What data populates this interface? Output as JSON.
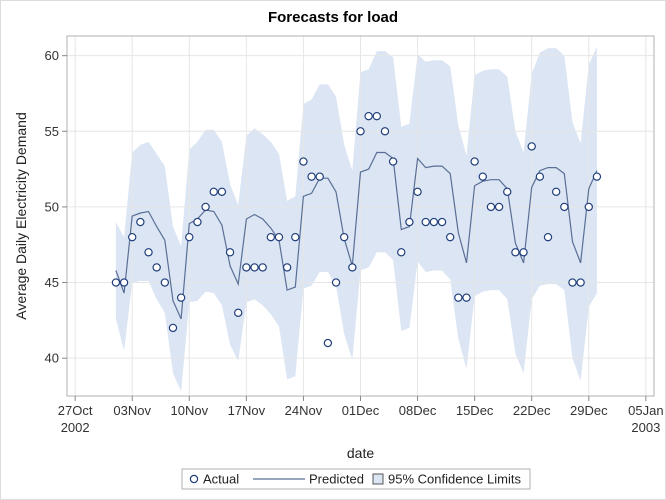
{
  "chart_data": {
    "type": "line",
    "title": "Forecasts for load",
    "xlabel": "date",
    "ylabel": "Average Daily Electricity Demand",
    "ylim": [
      37.5,
      61.3
    ],
    "yticks": [
      "40",
      "45",
      "50",
      "55",
      "60"
    ],
    "xticks": [
      {
        "date": "2002-10-27",
        "label": "27Oct",
        "sublabel": "2002"
      },
      {
        "date": "2002-11-03",
        "label": "03Nov",
        "sublabel": ""
      },
      {
        "date": "2002-11-10",
        "label": "10Nov",
        "sublabel": ""
      },
      {
        "date": "2002-11-17",
        "label": "17Nov",
        "sublabel": ""
      },
      {
        "date": "2002-11-24",
        "label": "24Nov",
        "sublabel": ""
      },
      {
        "date": "2002-12-01",
        "label": "01Dec",
        "sublabel": ""
      },
      {
        "date": "2002-12-08",
        "label": "08Dec",
        "sublabel": ""
      },
      {
        "date": "2002-12-15",
        "label": "15Dec",
        "sublabel": ""
      },
      {
        "date": "2002-12-22",
        "label": "22Dec",
        "sublabel": ""
      },
      {
        "date": "2002-12-29",
        "label": "29Dec",
        "sublabel": ""
      },
      {
        "date": "2003-01-05",
        "label": "05Jan",
        "sublabel": "2003"
      }
    ],
    "xlim": [
      "2002-10-26",
      "2003-01-06"
    ],
    "grid": true,
    "legend_position": "bottom",
    "series": [
      {
        "name": "Actual",
        "kind": "scatter",
        "color": "#1f3d7a",
        "points": [
          [
            "2002-11-01",
            45
          ],
          [
            "2002-11-02",
            45
          ],
          [
            "2002-11-03",
            48
          ],
          [
            "2002-11-04",
            49
          ],
          [
            "2002-11-05",
            47
          ],
          [
            "2002-11-06",
            46
          ],
          [
            "2002-11-07",
            45
          ],
          [
            "2002-11-08",
            42
          ],
          [
            "2002-11-09",
            44
          ],
          [
            "2002-11-10",
            48
          ],
          [
            "2002-11-11",
            49
          ],
          [
            "2002-11-12",
            50
          ],
          [
            "2002-11-13",
            51
          ],
          [
            "2002-11-14",
            51
          ],
          [
            "2002-11-15",
            47
          ],
          [
            "2002-11-16",
            43
          ],
          [
            "2002-11-17",
            46
          ],
          [
            "2002-11-18",
            46
          ],
          [
            "2002-11-19",
            46
          ],
          [
            "2002-11-20",
            48
          ],
          [
            "2002-11-21",
            48
          ],
          [
            "2002-11-22",
            46
          ],
          [
            "2002-11-23",
            48
          ],
          [
            "2002-11-24",
            53
          ],
          [
            "2002-11-25",
            52
          ],
          [
            "2002-11-26",
            52
          ],
          [
            "2002-11-27",
            41
          ],
          [
            "2002-11-28",
            45
          ],
          [
            "2002-11-29",
            48
          ],
          [
            "2002-11-30",
            46
          ],
          [
            "2002-12-01",
            55
          ],
          [
            "2002-12-02",
            56
          ],
          [
            "2002-12-03",
            56
          ],
          [
            "2002-12-04",
            55
          ],
          [
            "2002-12-05",
            53
          ],
          [
            "2002-12-06",
            47
          ],
          [
            "2002-12-07",
            49
          ],
          [
            "2002-12-08",
            51
          ],
          [
            "2002-12-09",
            49
          ],
          [
            "2002-12-10",
            49
          ],
          [
            "2002-12-11",
            49
          ],
          [
            "2002-12-12",
            48
          ],
          [
            "2002-12-13",
            44
          ],
          [
            "2002-12-14",
            44
          ],
          [
            "2002-12-15",
            53
          ],
          [
            "2002-12-16",
            52
          ],
          [
            "2002-12-17",
            50
          ],
          [
            "2002-12-18",
            50
          ],
          [
            "2002-12-19",
            51
          ],
          [
            "2002-12-20",
            47
          ],
          [
            "2002-12-21",
            47
          ],
          [
            "2002-12-22",
            54
          ],
          [
            "2002-12-23",
            52
          ],
          [
            "2002-12-24",
            48
          ],
          [
            "2002-12-25",
            51
          ],
          [
            "2002-12-26",
            50
          ],
          [
            "2002-12-27",
            45
          ],
          [
            "2002-12-28",
            45
          ],
          [
            "2002-12-29",
            50
          ],
          [
            "2002-12-30",
            52
          ]
        ]
      },
      {
        "name": "Predicted",
        "kind": "line",
        "color": "#5a6f96",
        "points": [
          [
            "2002-11-01",
            45.8
          ],
          [
            "2002-11-02",
            44.3
          ],
          [
            "2002-11-03",
            49.4
          ],
          [
            "2002-11-04",
            49.6
          ],
          [
            "2002-11-05",
            49.7
          ],
          [
            "2002-11-06",
            48.7
          ],
          [
            "2002-11-07",
            47.8
          ],
          [
            "2002-11-08",
            43.8
          ],
          [
            "2002-11-09",
            42.6
          ],
          [
            "2002-11-10",
            48.9
          ],
          [
            "2002-11-11",
            49.2
          ],
          [
            "2002-11-12",
            49.8
          ],
          [
            "2002-11-13",
            49.7
          ],
          [
            "2002-11-14",
            48.8
          ],
          [
            "2002-11-15",
            46.1
          ],
          [
            "2002-11-16",
            44.9
          ],
          [
            "2002-11-17",
            49.2
          ],
          [
            "2002-11-18",
            49.5
          ],
          [
            "2002-11-19",
            49.2
          ],
          [
            "2002-11-20",
            48.6
          ],
          [
            "2002-11-21",
            47.8
          ],
          [
            "2002-11-22",
            44.5
          ],
          [
            "2002-11-23",
            44.7
          ],
          [
            "2002-11-24",
            50.7
          ],
          [
            "2002-11-25",
            50.9
          ],
          [
            "2002-11-26",
            51.9
          ],
          [
            "2002-11-27",
            51.9
          ],
          [
            "2002-11-28",
            51.0
          ],
          [
            "2002-11-29",
            47.9
          ],
          [
            "2002-11-30",
            46.1
          ],
          [
            "2002-12-01",
            52.3
          ],
          [
            "2002-12-02",
            52.5
          ],
          [
            "2002-12-03",
            53.6
          ],
          [
            "2002-12-04",
            53.6
          ],
          [
            "2002-12-05",
            53.2
          ],
          [
            "2002-12-06",
            48.5
          ],
          [
            "2002-12-07",
            48.7
          ],
          [
            "2002-12-08",
            53.2
          ],
          [
            "2002-12-09",
            52.6
          ],
          [
            "2002-12-10",
            52.7
          ],
          [
            "2002-12-11",
            52.7
          ],
          [
            "2002-12-12",
            52.2
          ],
          [
            "2002-12-13",
            48.3
          ],
          [
            "2002-12-14",
            46.3
          ],
          [
            "2002-12-15",
            51.4
          ],
          [
            "2002-12-16",
            51.7
          ],
          [
            "2002-12-17",
            51.8
          ],
          [
            "2002-12-18",
            51.8
          ],
          [
            "2002-12-19",
            51.2
          ],
          [
            "2002-12-20",
            47.6
          ],
          [
            "2002-12-21",
            46.3
          ],
          [
            "2002-12-22",
            51.3
          ],
          [
            "2002-12-23",
            52.4
          ],
          [
            "2002-12-24",
            52.6
          ],
          [
            "2002-12-25",
            52.6
          ],
          [
            "2002-12-26",
            52.2
          ],
          [
            "2002-12-27",
            47.7
          ],
          [
            "2002-12-28",
            46.3
          ],
          [
            "2002-12-29",
            51.2
          ],
          [
            "2002-12-30",
            52.4
          ]
        ]
      },
      {
        "name": "95% Confidence Limits",
        "kind": "band",
        "color": "#dbe5f3",
        "points": [
          [
            "2002-11-01",
            42.6,
            49.0
          ],
          [
            "2002-11-02",
            40.5,
            48.0
          ],
          [
            "2002-11-03",
            45.0,
            53.6
          ],
          [
            "2002-11-04",
            45.1,
            54.1
          ],
          [
            "2002-11-05",
            45.1,
            54.3
          ],
          [
            "2002-11-06",
            43.9,
            53.5
          ],
          [
            "2002-11-07",
            43.0,
            52.7
          ],
          [
            "2002-11-08",
            39.0,
            48.7
          ],
          [
            "2002-11-09",
            37.8,
            47.4
          ],
          [
            "2002-11-10",
            43.7,
            53.8
          ],
          [
            "2002-11-11",
            43.8,
            54.3
          ],
          [
            "2002-11-12",
            44.4,
            55.1
          ],
          [
            "2002-11-13",
            44.3,
            55.1
          ],
          [
            "2002-11-14",
            43.5,
            54.3
          ],
          [
            "2002-11-15",
            40.9,
            51.5
          ],
          [
            "2002-11-16",
            39.8,
            50.1
          ],
          [
            "2002-11-17",
            43.7,
            54.7
          ],
          [
            "2002-11-18",
            43.9,
            55.2
          ],
          [
            "2002-11-19",
            43.5,
            54.8
          ],
          [
            "2002-11-20",
            42.9,
            54.3
          ],
          [
            "2002-11-21",
            42.1,
            53.5
          ],
          [
            "2002-11-22",
            38.6,
            50.4
          ],
          [
            "2002-11-23",
            38.8,
            50.7
          ],
          [
            "2002-11-24",
            44.6,
            56.8
          ],
          [
            "2002-11-25",
            44.8,
            57.1
          ],
          [
            "2002-11-26",
            45.7,
            58.1
          ],
          [
            "2002-11-27",
            45.7,
            58.1
          ],
          [
            "2002-11-28",
            44.8,
            57.3
          ],
          [
            "2002-11-29",
            41.6,
            54.1
          ],
          [
            "2002-11-30",
            39.9,
            52.4
          ],
          [
            "2002-12-01",
            45.8,
            58.9
          ],
          [
            "2002-12-02",
            46.0,
            59.1
          ],
          [
            "2002-12-03",
            47.0,
            60.3
          ],
          [
            "2002-12-04",
            47.0,
            60.3
          ],
          [
            "2002-12-05",
            46.5,
            59.9
          ],
          [
            "2002-12-06",
            41.8,
            55.3
          ],
          [
            "2002-12-07",
            42.0,
            55.5
          ],
          [
            "2002-12-08",
            46.4,
            60.1
          ],
          [
            "2002-12-09",
            45.7,
            59.6
          ],
          [
            "2002-12-10",
            45.8,
            59.7
          ],
          [
            "2002-12-11",
            45.8,
            59.7
          ],
          [
            "2002-12-12",
            45.2,
            59.3
          ],
          [
            "2002-12-13",
            41.3,
            55.4
          ],
          [
            "2002-12-14",
            39.3,
            53.4
          ],
          [
            "2002-12-15",
            44.1,
            58.7
          ],
          [
            "2002-12-16",
            44.4,
            59.0
          ],
          [
            "2002-12-17",
            44.5,
            59.1
          ],
          [
            "2002-12-18",
            44.5,
            59.1
          ],
          [
            "2002-12-19",
            43.9,
            58.6
          ],
          [
            "2002-12-20",
            40.3,
            55.0
          ],
          [
            "2002-12-21",
            39.0,
            53.6
          ],
          [
            "2002-12-22",
            43.9,
            58.8
          ],
          [
            "2002-12-23",
            44.8,
            60.2
          ],
          [
            "2002-12-24",
            44.9,
            60.5
          ],
          [
            "2002-12-25",
            44.9,
            60.5
          ],
          [
            "2002-12-26",
            44.5,
            60.0
          ],
          [
            "2002-12-27",
            40.0,
            55.6
          ],
          [
            "2002-12-28",
            38.5,
            54.2
          ],
          [
            "2002-12-29",
            43.4,
            59.4
          ],
          [
            "2002-12-30",
            44.3,
            60.6
          ]
        ]
      }
    ]
  }
}
